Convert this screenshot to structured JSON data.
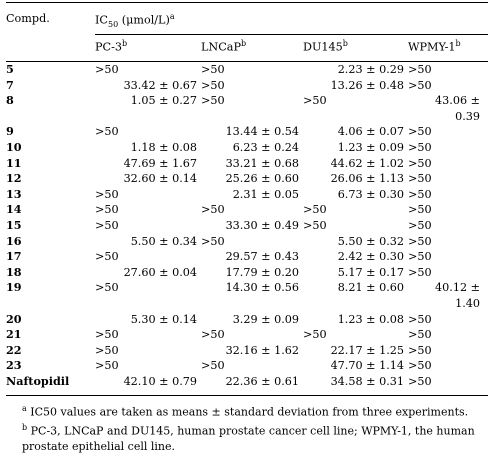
{
  "header": {
    "compd_label": "Compd.",
    "ic50_prefix": "IC",
    "ic50_sub": "50",
    "ic50_suffix": " (μmol/L)",
    "ic50_sup": "a",
    "cols": [
      {
        "label": "PC-3",
        "sup": "b"
      },
      {
        "label": "LNCaP",
        "sup": "b"
      },
      {
        "label": "DU145",
        "sup": "b"
      },
      {
        "label": "WPMY-1",
        "sup": "b"
      }
    ]
  },
  "rows": [
    {
      "id": "5",
      "v": [
        ">50",
        ">50",
        "2.23 ± 0.29",
        ">50"
      ]
    },
    {
      "id": "7",
      "v": [
        "33.42 ± 0.67",
        ">50",
        "13.26 ± 0.48",
        ">50"
      ]
    },
    {
      "id": "8",
      "v": [
        "1.05 ± 0.27",
        ">50",
        ">50",
        "43.06 ± 0.39"
      ]
    },
    {
      "id": "9",
      "v": [
        ">50",
        "13.44 ± 0.54",
        "4.06 ± 0.07",
        ">50"
      ]
    },
    {
      "id": "10",
      "v": [
        "1.18 ± 0.08",
        "6.23 ± 0.24",
        "1.23 ± 0.09",
        ">50"
      ]
    },
    {
      "id": "11",
      "v": [
        "47.69 ± 1.67",
        "33.21 ± 0.68",
        "44.62 ± 1.02",
        ">50"
      ]
    },
    {
      "id": "12",
      "v": [
        "32.60 ± 0.14",
        "25.26 ± 0.60",
        "26.06 ± 1.13",
        ">50"
      ]
    },
    {
      "id": "13",
      "v": [
        ">50",
        "2.31 ± 0.05",
        "6.73 ± 0.30",
        ">50"
      ]
    },
    {
      "id": "14",
      "v": [
        ">50",
        ">50",
        ">50",
        ">50"
      ]
    },
    {
      "id": "15",
      "v": [
        ">50",
        "33.30 ± 0.49",
        ">50",
        ">50"
      ]
    },
    {
      "id": "16",
      "v": [
        "5.50 ± 0.34",
        ">50",
        "5.50 ± 0.32",
        ">50"
      ]
    },
    {
      "id": "17",
      "v": [
        ">50",
        "29.57 ± 0.43",
        "2.42 ± 0.30",
        ">50"
      ]
    },
    {
      "id": "18",
      "v": [
        "27.60 ± 0.04",
        "17.79 ± 0.20",
        "5.17 ± 0.17",
        ">50"
      ]
    },
    {
      "id": "19",
      "v": [
        ">50",
        "14.30 ± 0.56",
        "8.21 ± 0.60",
        "40.12 ± 1.40"
      ]
    },
    {
      "id": "20",
      "v": [
        "5.30 ± 0.14",
        "3.29 ± 0.09",
        "1.23 ± 0.08",
        ">50"
      ]
    },
    {
      "id": "21",
      "v": [
        ">50",
        ">50",
        ">50",
        ">50"
      ]
    },
    {
      "id": "22",
      "v": [
        ">50",
        "32.16 ± 1.62",
        "22.17 ± 1.25",
        ">50"
      ]
    },
    {
      "id": "23",
      "v": [
        ">50",
        ">50",
        "47.70 ± 1.14",
        ">50"
      ]
    },
    {
      "id": "Naftopidil",
      "v": [
        "42.10 ± 0.79",
        "22.36 ± 0.61",
        "34.58 ± 0.31",
        ">50"
      ]
    }
  ],
  "footnotes": [
    {
      "mark": "a",
      "text": "IC50 values are taken as means ± standard deviation from three experiments."
    },
    {
      "mark": "b",
      "text": "PC-3, LNCaP and DU145, human prostate cancer cell line; WPMY-1, the human prostate epithelial cell line."
    }
  ]
}
